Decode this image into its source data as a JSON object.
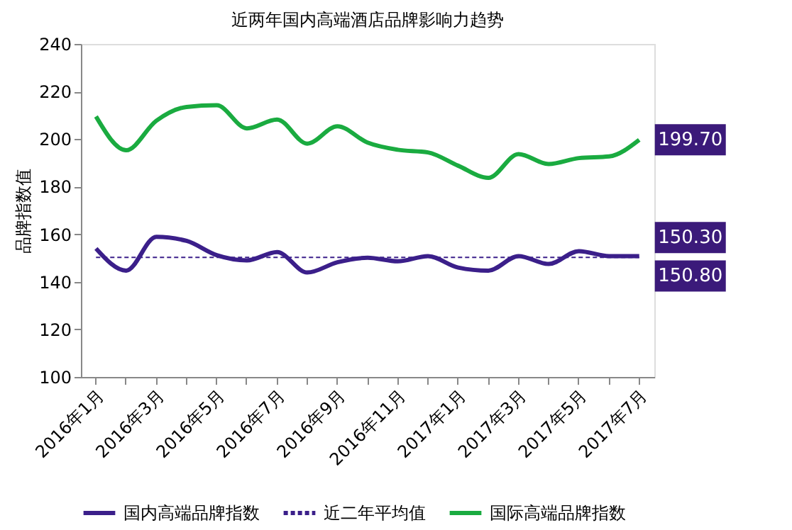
{
  "chart_data": {
    "type": "line",
    "title": "近两年国内高端酒店品牌影响力趋势",
    "ylabel": "品牌指数值",
    "categories": [
      "2016年1月",
      null,
      "2016年3月",
      null,
      "2016年5月",
      null,
      "2016年7月",
      null,
      "2016年9月",
      null,
      "2016年11月",
      null,
      "2017年1月",
      null,
      "2017年3月",
      null,
      "2017年5月",
      null,
      "2017年7月"
    ],
    "series": [
      {
        "name": "国内高端品牌指数",
        "color": "#3b1f8a",
        "line_style": "solid",
        "values": [
          154,
          144.7,
          158.9,
          157.2,
          151.2,
          149,
          152.5,
          143.9,
          148.2,
          150.1,
          148.6,
          150.8,
          146,
          144.7,
          150.8,
          147.5,
          152.9,
          150.8,
          150.8
        ],
        "value_labels": [
          null,
          null,
          null,
          null,
          null,
          null,
          null,
          null,
          null,
          null,
          null,
          null,
          null,
          null,
          null,
          null,
          null,
          null,
          "150.80"
        ]
      },
      {
        "name": "近二年平均值",
        "color": "#3b1f8a",
        "line_style": "dashed",
        "values": [
          150.3,
          150.3,
          150.3,
          150.3,
          150.3,
          150.3,
          150.3,
          150.3,
          150.3,
          150.3,
          150.3,
          150.3,
          150.3,
          150.3,
          150.3,
          150.3,
          150.3,
          150.3,
          150.3
        ],
        "value_labels": [
          null,
          null,
          null,
          null,
          null,
          null,
          null,
          null,
          null,
          null,
          null,
          null,
          null,
          null,
          null,
          null,
          null,
          null,
          "150.30"
        ]
      },
      {
        "name": "国际高端品牌指数",
        "color": "#1aab40",
        "line_style": "solid",
        "values": [
          209.5,
          195.3,
          207.7,
          213.5,
          214.2,
          204.5,
          208.2,
          198.1,
          205.4,
          198.5,
          195.5,
          194.4,
          188.8,
          183.7,
          193.7,
          189.5,
          192,
          192.7,
          199.7
        ],
        "value_labels": [
          null,
          null,
          null,
          null,
          null,
          null,
          null,
          null,
          null,
          null,
          null,
          null,
          null,
          null,
          null,
          null,
          null,
          null,
          "199.70"
        ]
      }
    ],
    "ylim": [
      100,
      240
    ],
    "yticks": [
      100,
      120,
      140,
      160,
      180,
      200,
      220,
      240
    ],
    "grid": false,
    "legend": "bottom"
  }
}
